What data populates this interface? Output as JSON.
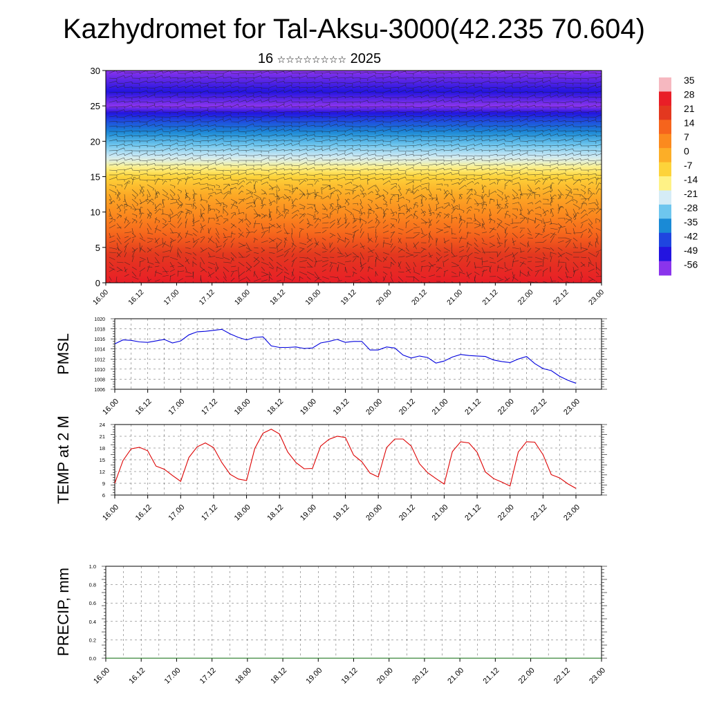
{
  "header": {
    "title": "Kazhydromet for Tal-Aksu-3000(42.235 70.604)",
    "subtitle_day": "16",
    "subtitle_month": "☆☆☆☆☆☆☆☆",
    "subtitle_year": "2025"
  },
  "colors": {
    "pmsl_line": "#0000dd",
    "temp_line": "#dd0000",
    "precip_line": "#006400",
    "frame": "#000000"
  },
  "chart_data": [
    {
      "id": "cross_section",
      "type": "heatmap",
      "title": "",
      "xlabel": "",
      "ylabel": "",
      "x_tick_labels": [
        "16.00",
        "16.12",
        "17.00",
        "17.12",
        "18.00",
        "18.12",
        "19.00",
        "19.12",
        "20.00",
        "20.12",
        "21.00",
        "21.12",
        "22.00",
        "22.12",
        "23.00"
      ],
      "ylim": [
        0,
        30
      ],
      "y_ticks": [
        0,
        5,
        10,
        15,
        20,
        25,
        30
      ],
      "colorbar": {
        "labels": [
          "35",
          "28",
          "21",
          "14",
          "7",
          "0",
          "-7",
          "-14",
          "-21",
          "-28",
          "-35",
          "-42",
          "-49",
          "-56"
        ],
        "stops": [
          "#f6b8c0",
          "#e91e27",
          "#e3381f",
          "#f6641c",
          "#fb8a1e",
          "#fcae27",
          "#fdd33a",
          "#fef286",
          "#d5ecf6",
          "#6ec6ee",
          "#1a8ad6",
          "#1f45e0",
          "#2314e0",
          "#8a34ec"
        ]
      },
      "temperature_by_height": [
        {
          "h": 0,
          "t": 28
        },
        {
          "h": 4,
          "t": 21
        },
        {
          "h": 8,
          "t": 11
        },
        {
          "h": 12,
          "t": 2
        },
        {
          "h": 15,
          "t": -7
        },
        {
          "h": 17,
          "t": -18
        },
        {
          "h": 20,
          "t": -30
        },
        {
          "h": 23,
          "t": -42
        },
        {
          "h": 25,
          "t": -56
        },
        {
          "h": 27,
          "t": -49
        },
        {
          "h": 30,
          "t": -56
        }
      ],
      "wind_barbs": true
    },
    {
      "id": "pmsl",
      "type": "line",
      "ylabel": "PMSL",
      "ylim": [
        1006,
        1020
      ],
      "y_ticks": [
        1006,
        1008,
        1010,
        1012,
        1014,
        1016,
        1018,
        1020
      ],
      "x_tick_labels": [
        "16.00",
        "16.12",
        "17.00",
        "17.12",
        "18.00",
        "18.12",
        "19.00",
        "19.12",
        "20.00",
        "20.12",
        "21.00",
        "21.12",
        "22.00",
        "22.12",
        "23.00"
      ],
      "xlim": [
        0,
        168
      ],
      "grid": true,
      "series": [
        {
          "x": [
            0,
            3,
            6,
            9,
            12,
            15,
            18,
            21,
            24,
            27,
            30,
            33,
            36,
            39,
            42,
            45,
            48,
            51,
            54,
            57,
            60,
            63,
            66,
            69,
            72,
            75,
            78,
            81,
            84,
            87,
            90,
            93,
            96,
            99,
            102,
            105,
            108,
            111,
            114,
            117,
            120,
            123,
            126,
            129,
            132,
            135,
            138,
            141,
            144,
            147,
            150,
            153,
            156,
            159,
            162,
            165,
            168
          ],
          "y": [
            1015.0,
            1015.8,
            1015.7,
            1015.4,
            1015.3,
            1015.6,
            1015.9,
            1015.2,
            1015.6,
            1016.8,
            1017.4,
            1017.5,
            1017.7,
            1017.9,
            1017.0,
            1016.3,
            1015.8,
            1016.3,
            1016.4,
            1014.6,
            1014.3,
            1014.3,
            1014.4,
            1014.1,
            1014.2,
            1015.2,
            1015.5,
            1015.9,
            1015.3,
            1015.5,
            1015.5,
            1013.8,
            1013.8,
            1014.4,
            1014.2,
            1012.8,
            1012.2,
            1012.6,
            1012.3,
            1011.2,
            1011.6,
            1012.4,
            1012.9,
            1012.7,
            1012.6,
            1012.5,
            1011.8,
            1011.5,
            1011.3,
            1012.0,
            1012.5,
            1011.1,
            1010.1,
            1009.7,
            1008.6,
            1007.8,
            1007.2
          ]
        }
      ]
    },
    {
      "id": "temp2m",
      "type": "line",
      "ylabel": "TEMP at 2 M",
      "ylim": [
        6,
        24
      ],
      "y_ticks": [
        6,
        9,
        12,
        15,
        18,
        21,
        24
      ],
      "x_tick_labels": [
        "16.00",
        "16.12",
        "17.00",
        "17.12",
        "18.00",
        "18.12",
        "19.00",
        "19.12",
        "20.00",
        "20.12",
        "21.00",
        "21.12",
        "22.00",
        "22.12",
        "23.00"
      ],
      "xlim": [
        0,
        168
      ],
      "grid": true,
      "series": [
        {
          "x": [
            0,
            3,
            6,
            9,
            12,
            15,
            18,
            21,
            24,
            27,
            30,
            33,
            36,
            39,
            42,
            45,
            48,
            51,
            54,
            57,
            60,
            63,
            66,
            69,
            72,
            75,
            78,
            81,
            84,
            87,
            90,
            93,
            96,
            99,
            102,
            105,
            108,
            111,
            114,
            117,
            120,
            123,
            126,
            129,
            132,
            135,
            138,
            141,
            144,
            147,
            150,
            153,
            156,
            159,
            162,
            165,
            168
          ],
          "y": [
            9.0,
            14.8,
            17.8,
            18.2,
            17.3,
            13.4,
            12.6,
            11.0,
            9.5,
            15.6,
            18.3,
            19.3,
            18.1,
            14.3,
            11.3,
            10.1,
            9.7,
            17.9,
            21.8,
            22.8,
            21.6,
            17.0,
            14.3,
            12.7,
            12.8,
            18.5,
            20.2,
            21.0,
            20.7,
            16.2,
            14.5,
            11.6,
            10.6,
            18.1,
            20.3,
            20.3,
            18.5,
            14.0,
            11.7,
            10.2,
            8.8,
            17.1,
            19.6,
            19.3,
            16.9,
            11.9,
            10.2,
            9.3,
            8.3,
            17.0,
            19.6,
            19.5,
            16.3,
            11.2,
            10.4,
            8.9,
            7.7
          ]
        }
      ]
    },
    {
      "id": "precip",
      "type": "line",
      "ylabel": "PRECIP, mm",
      "ylim": [
        0.0,
        1.0
      ],
      "y_tick_labels": [
        "0.0",
        "0.2",
        "0.4",
        "0.6",
        "0.8",
        "1.0"
      ],
      "x_tick_labels": [
        "16.00",
        "16.12",
        "17.00",
        "17.12",
        "18.00",
        "18.12",
        "19.00",
        "19.12",
        "20.00",
        "20.12",
        "21.00",
        "21.12",
        "22.00",
        "22.12",
        "23.00"
      ],
      "xlim": [
        0,
        168
      ],
      "grid": true,
      "series": [
        {
          "x": [
            0,
            168
          ],
          "y": [
            0.0,
            0.0
          ]
        }
      ]
    }
  ]
}
